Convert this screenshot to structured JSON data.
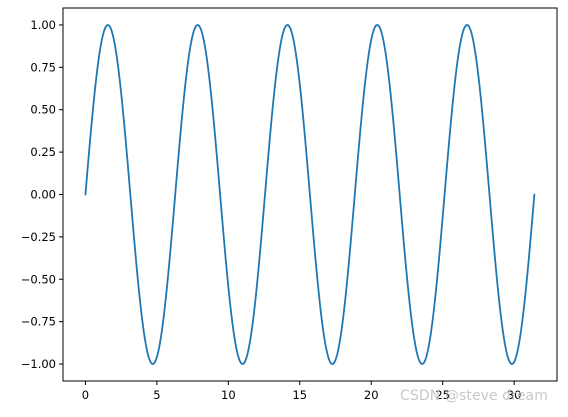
{
  "chart_data": {
    "type": "line",
    "title": "",
    "xlabel": "",
    "ylabel": "",
    "xlim": [
      -1.57,
      33.0
    ],
    "ylim": [
      -1.1,
      1.1
    ],
    "xticks": [
      0,
      5,
      10,
      15,
      20,
      25,
      30
    ],
    "yticks": [
      -1.0,
      -0.75,
      -0.5,
      -0.25,
      0.0,
      0.25,
      0.5,
      0.75,
      1.0
    ],
    "xtick_labels": [
      "0",
      "5",
      "10",
      "15",
      "20",
      "25",
      "30"
    ],
    "ytick_labels": [
      "−1.00",
      "−0.75",
      "−0.50",
      "−0.25",
      "0.00",
      "0.25",
      "0.50",
      "0.75",
      "1.00"
    ],
    "grid": false,
    "legend": "none",
    "series": [
      {
        "function": "sin(x)",
        "x_range": [
          0,
          31.4159
        ],
        "samples": 500,
        "color": "#1f77b4"
      }
    ]
  },
  "watermark": {
    "text": "CSDN @steve dream",
    "color": "#c8c8c8"
  }
}
